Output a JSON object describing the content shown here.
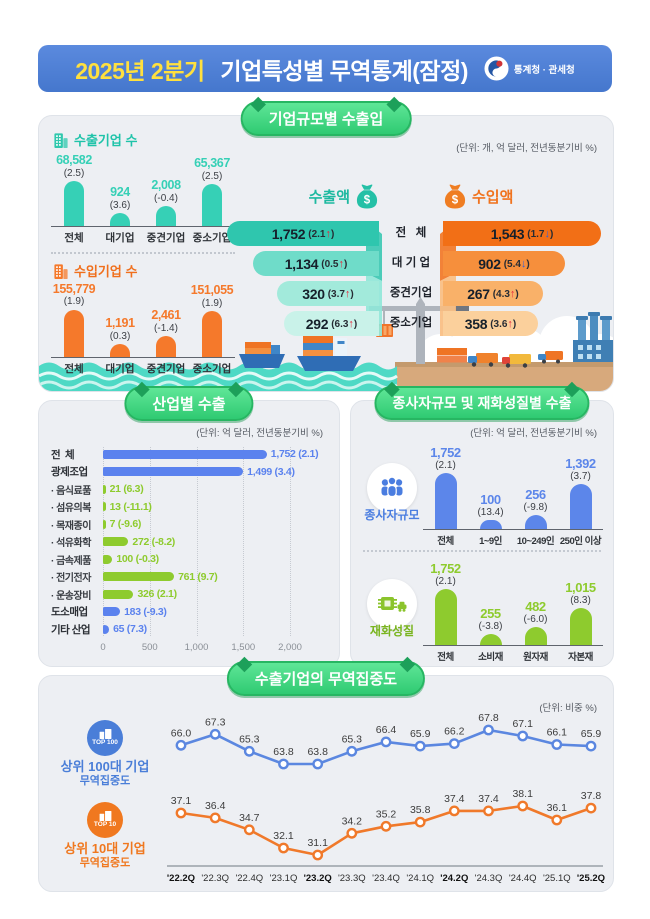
{
  "header": {
    "title_highlight": "2025년 2분기",
    "title_rest": " 기업특성별 무역통계(잠정)",
    "agency": "통계청 · 관세청"
  },
  "panels": {
    "size": {
      "badge": "기업규모별 수출입",
      "unit": "(단위: 개, 억 달러, 전년동분기비 %)"
    },
    "industry": {
      "badge": "산업별 수출",
      "unit": "(단위: 억 달러, 전년동분기비 %)"
    },
    "workers_goods": {
      "badge": "종사자규모 및 재화성질별 수출",
      "unit": "(단위: 억 달러, 전년동분기비 %)"
    },
    "concentration": {
      "badge": "수출기업의 무역집중도",
      "unit": "(단위: 비중 %)"
    }
  },
  "chart_data": [
    {
      "id": "export_company_count",
      "type": "bar",
      "title": "수출기업 수",
      "categories": [
        "전체",
        "대기업",
        "중견기업",
        "중소기업"
      ],
      "values": [
        68582,
        924,
        2008,
        65367
      ],
      "value_labels": [
        "68,582",
        "924",
        "2,008",
        "65,367"
      ],
      "change_labels": [
        "(2.5)",
        "(3.6)",
        "(-0.4)",
        "(2.5)"
      ],
      "color": "#36d0b6",
      "bar_heights": [
        45,
        13,
        20,
        42
      ]
    },
    {
      "id": "import_company_count",
      "type": "bar",
      "title": "수입기업 수",
      "categories": [
        "전체",
        "대기업",
        "중견기업",
        "중소기업"
      ],
      "values": [
        155779,
        1191,
        2461,
        151055
      ],
      "value_labels": [
        "155,779",
        "1,191",
        "2,461",
        "151,055"
      ],
      "change_labels": [
        "(1.9)",
        "(0.3)",
        "(-1.4)",
        "(1.9)"
      ],
      "color": "#f5792b",
      "bar_heights": [
        48,
        13,
        21,
        46
      ]
    },
    {
      "id": "export_amount",
      "type": "bar",
      "title": "수출액",
      "categories": [
        "전   체",
        "대 기 업",
        "중견기업",
        "중소기업"
      ],
      "values": [
        1752,
        1134,
        320,
        292
      ],
      "value_labels": [
        "1,752",
        "1,134",
        "320",
        "292"
      ],
      "changes": [
        "2.1",
        "0.5",
        "3.7",
        "6.3"
      ],
      "dirs": [
        "up",
        "up",
        "up",
        "up"
      ],
      "bar_widths": [
        152,
        126,
        102,
        95
      ],
      "bar_colors": [
        "#2fc6ae",
        "#6fdcc9",
        "#a2eadb",
        "#c9f2e9"
      ]
    },
    {
      "id": "import_amount",
      "type": "bar",
      "title": "수입액",
      "categories": [
        "전   체",
        "대 기 업",
        "중견기업",
        "중소기업"
      ],
      "values": [
        1543,
        902,
        267,
        358
      ],
      "value_labels": [
        "1,543",
        "902",
        "267",
        "358"
      ],
      "changes": [
        "1.7",
        "5.4",
        "4.3",
        "3.6"
      ],
      "dirs": [
        "down",
        "down",
        "up",
        "up"
      ],
      "bar_widths": [
        158,
        122,
        100,
        95
      ],
      "bar_colors": [
        "#f26f16",
        "#f68f3c",
        "#f9b169",
        "#fbd09c"
      ]
    },
    {
      "id": "industry_export",
      "type": "bar",
      "title": "산업별 수출",
      "categories": [
        "전  체",
        "광제조업",
        "음식료품",
        "섬유의복",
        "목재종이",
        "석유화학",
        "금속제품",
        "전기전자",
        "운송장비",
        "도소매업",
        "기타 산업"
      ],
      "sub": [
        false,
        false,
        true,
        true,
        true,
        true,
        true,
        true,
        true,
        false,
        false
      ],
      "values": [
        1752,
        1499,
        21,
        13,
        7,
        272,
        100,
        761,
        326,
        183,
        65
      ],
      "value_labels": [
        "1,752 (2.1)",
        "1,499 (3.4)",
        "21 (6.3)",
        "13 (-11.1)",
        "7 (-9.6)",
        "272 (-8.2)",
        "100 (-0.3)",
        "761 (9.7)",
        "326 (2.1)",
        "183 (-9.3)",
        "65 (7.3)"
      ],
      "bar_colors": [
        "#5b82ee",
        "#5b82ee",
        "#8ecb2e",
        "#8ecb2e",
        "#8ecb2e",
        "#8ecb2e",
        "#8ecb2e",
        "#8ecb2e",
        "#8ecb2e",
        "#5b82ee",
        "#5b82ee"
      ],
      "x_ticks": [
        "0",
        "500",
        "1,000",
        "1,500",
        "2,000"
      ],
      "xmax": 2000
    },
    {
      "id": "workers_size",
      "type": "bar",
      "group_label": "종사자규모",
      "categories": [
        "전체",
        "1~9인",
        "10~249인",
        "250인 이상"
      ],
      "values": [
        1752,
        100,
        256,
        1392
      ],
      "value_labels": [
        "1,752",
        "100",
        "256",
        "1,392"
      ],
      "change_labels": [
        "(2.1)",
        "(13.4)",
        "(-9.8)",
        "(3.7)"
      ],
      "color": "#5c86ea",
      "bar_heights": [
        56,
        9,
        14,
        45
      ]
    },
    {
      "id": "goods_nature",
      "type": "bar",
      "group_label": "재화성질",
      "categories": [
        "전체",
        "소비재",
        "원자재",
        "자본재"
      ],
      "values": [
        1752,
        255,
        482,
        1015
      ],
      "value_labels": [
        "1,752",
        "255",
        "482",
        "1,015"
      ],
      "change_labels": [
        "(2.1)",
        "(-3.8)",
        "(-6.0)",
        "(8.3)"
      ],
      "color": "#8ecb2e",
      "bar_heights": [
        56,
        11,
        18,
        37
      ]
    },
    {
      "id": "concentration",
      "type": "line",
      "categories": [
        "'22.2Q",
        "'22.3Q",
        "'22.4Q",
        "'23.1Q",
        "'23.2Q",
        "'23.3Q",
        "'23.4Q",
        "'24.1Q",
        "'24.2Q",
        "'24.3Q",
        "'24.4Q",
        "'25.1Q",
        "'25.2Q"
      ],
      "bold_ticks": [
        0,
        4,
        8,
        12
      ],
      "series": [
        {
          "badge": "TOP 100",
          "name": "상위 100대 기업",
          "sub": "무역집중도",
          "color": "#5b87e0",
          "values": [
            66.0,
            67.3,
            65.3,
            63.8,
            63.8,
            65.3,
            66.4,
            65.9,
            66.2,
            67.8,
            67.1,
            66.1,
            65.9
          ]
        },
        {
          "badge": "TOP 10",
          "name": "상위 10대 기업",
          "sub": "무역집중도",
          "color": "#f0792a",
          "values": [
            37.1,
            36.4,
            34.7,
            32.1,
            31.1,
            34.2,
            35.2,
            35.8,
            37.4,
            37.4,
            38.1,
            36.1,
            37.8
          ]
        }
      ]
    }
  ]
}
